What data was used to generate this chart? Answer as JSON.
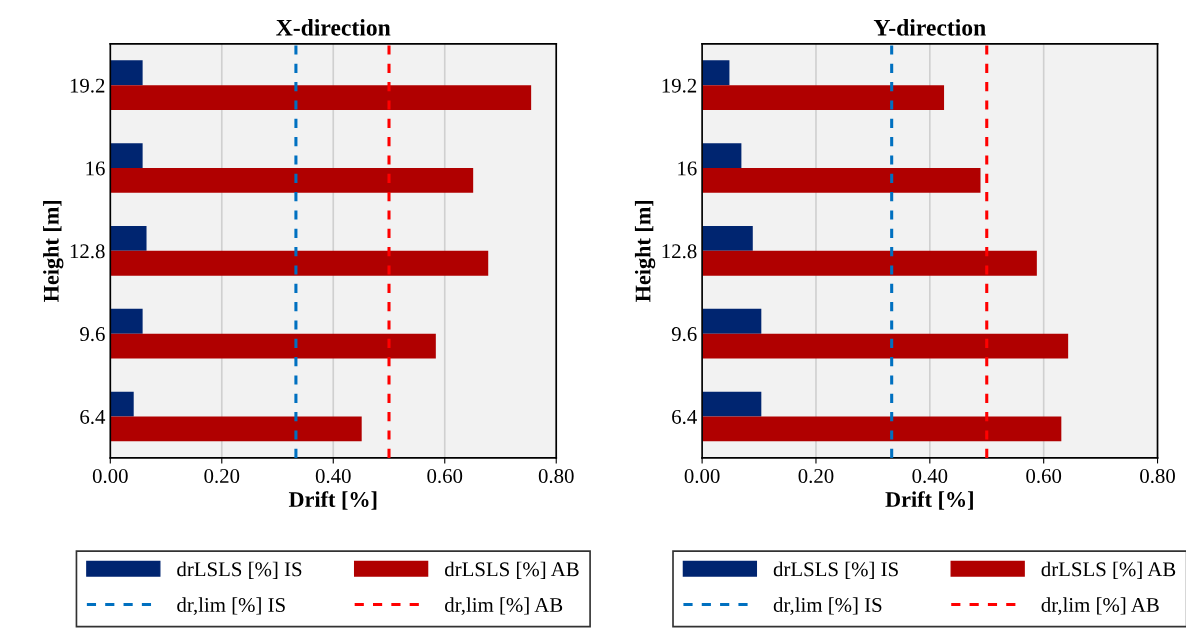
{
  "chart_data": [
    {
      "type": "bar",
      "orientation": "horizontal",
      "title": "X-direction",
      "xlabel": "Drift [%]",
      "ylabel": "Height [m]",
      "categories": [
        "19.2",
        "16",
        "12.8",
        "9.6",
        "6.4"
      ],
      "series": [
        {
          "name": "drLSLS [%] IS",
          "color": "#002570",
          "values": [
            0.058,
            0.058,
            0.065,
            0.058,
            0.042
          ]
        },
        {
          "name": "drLSLS [%] AB",
          "color": "#b00000",
          "values": [
            0.755,
            0.651,
            0.678,
            0.584,
            0.451
          ]
        }
      ],
      "xlim": [
        0,
        0.8
      ],
      "xticks": [
        {
          "value": 0,
          "label": "0.00"
        },
        {
          "value": 0.2,
          "label": "0.20"
        },
        {
          "value": 0.4,
          "label": "0.40"
        },
        {
          "value": 0.6,
          "label": "0.60"
        },
        {
          "value": 0.8,
          "label": "0.80"
        }
      ],
      "ref_lines": [
        {
          "axis": "x",
          "value": 0.333,
          "label": "dr,lim [%] IS",
          "color": "#0070c0",
          "line_style": "dashed"
        },
        {
          "axis": "x",
          "value": 0.5,
          "label": "dr,lim [%] AB",
          "color": "#ff0000",
          "line_style": "dashed"
        }
      ],
      "grid": "x",
      "legend": "bottom"
    },
    {
      "type": "bar",
      "orientation": "horizontal",
      "title": "Y-direction",
      "xlabel": "Drift [%]",
      "ylabel": "Height [m]",
      "categories": [
        "19.2",
        "16",
        "12.8",
        "9.6",
        "6.4"
      ],
      "series": [
        {
          "name": "drLSLS [%] IS",
          "color": "#002570",
          "values": [
            0.048,
            0.069,
            0.089,
            0.104,
            0.104
          ]
        },
        {
          "name": "drLSLS [%] AB",
          "color": "#b00000",
          "values": [
            0.425,
            0.489,
            0.588,
            0.643,
            0.631
          ]
        }
      ],
      "xlim": [
        0,
        0.8
      ],
      "xticks": [
        {
          "value": 0,
          "label": "0.00"
        },
        {
          "value": 0.2,
          "label": "0.20"
        },
        {
          "value": 0.4,
          "label": "0.40"
        },
        {
          "value": 0.6,
          "label": "0.60"
        },
        {
          "value": 0.8,
          "label": "0.80"
        }
      ],
      "ref_lines": [
        {
          "axis": "x",
          "value": 0.333,
          "label": "dr,lim [%] IS",
          "color": "#0070c0",
          "line_style": "dashed"
        },
        {
          "axis": "x",
          "value": 0.5,
          "label": "dr,lim [%] AB",
          "color": "#ff0000",
          "line_style": "dashed"
        }
      ],
      "grid": "x",
      "legend": "bottom"
    }
  ]
}
